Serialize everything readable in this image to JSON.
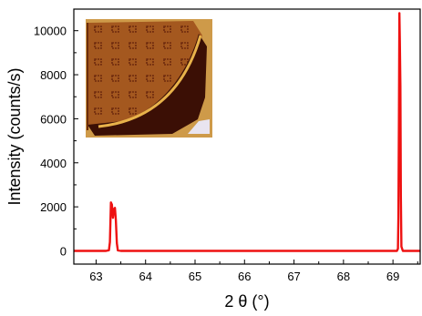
{
  "chart_data": {
    "type": "line",
    "title": "",
    "xlabel": "2 θ (°)",
    "ylabel": "Intensity (counts/s)",
    "xlim": [
      62.55,
      69.55
    ],
    "ylim": [
      -600,
      10980
    ],
    "xticks": [
      63,
      64,
      65,
      66,
      67,
      68,
      69
    ],
    "yticks": [
      0,
      2000,
      4000,
      6000,
      8000,
      10000
    ],
    "x_tick_labels": [
      "63",
      "64",
      "65",
      "66",
      "67",
      "68",
      "69"
    ],
    "y_tick_labels": [
      "0",
      "2000",
      "4000",
      "6000",
      "8000",
      "10000"
    ],
    "grid": false,
    "legend": "none",
    "series": [
      {
        "color": "#ee1111",
        "x": [
          62.55,
          63.2,
          63.26,
          63.28,
          63.3,
          63.32,
          63.34,
          63.36,
          63.38,
          63.4,
          63.42,
          63.44,
          63.5,
          64.0,
          65.0,
          66.0,
          67.0,
          68.0,
          69.0,
          69.08,
          69.1,
          69.11,
          69.12,
          69.13,
          69.14,
          69.15,
          69.16,
          69.17,
          69.2,
          69.55
        ],
        "y": [
          0,
          0,
          30,
          400,
          2200,
          2100,
          1500,
          1900,
          1950,
          1400,
          350,
          20,
          0,
          0,
          0,
          0,
          0,
          0,
          0,
          0,
          100,
          1500,
          6000,
          10800,
          9500,
          7500,
          2500,
          200,
          0,
          0
        ]
      }
    ]
  },
  "inset": {
    "description_icon": "wafer-photo-image",
    "colors": {
      "background": "#d2a04e",
      "wafer": "#a4581f",
      "dark": "#3b0f05",
      "arc": "#e8b24a"
    }
  }
}
